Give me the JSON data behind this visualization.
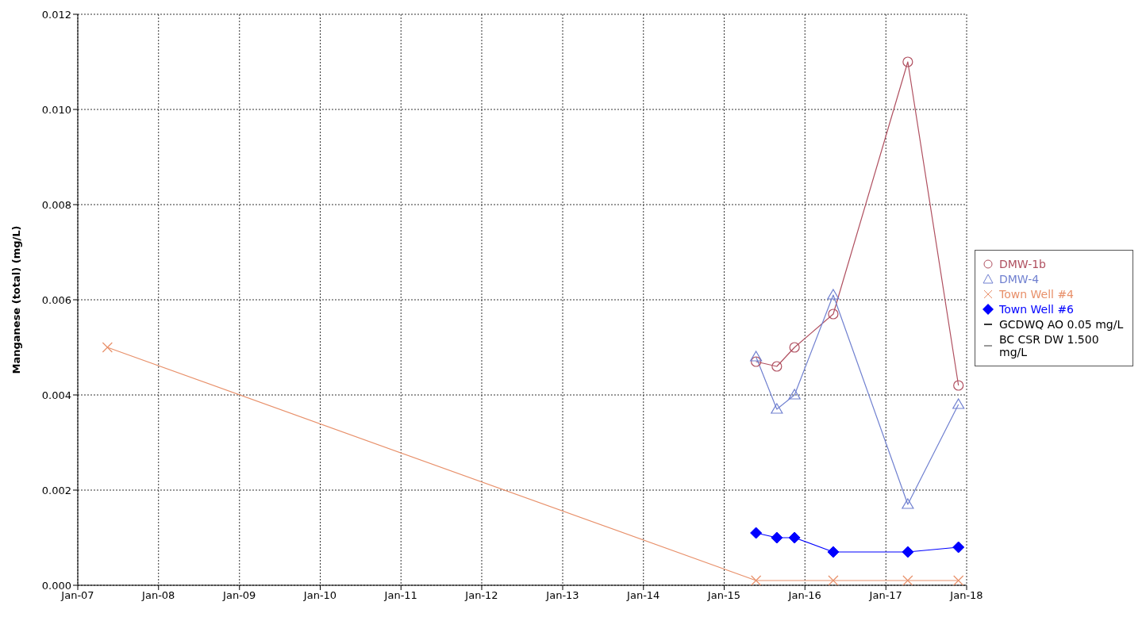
{
  "chart_data": {
    "type": "line",
    "ylabel": "Manganese (total) (mg/L)",
    "xlim": [
      "2007-01",
      "2018-01"
    ],
    "xticks": [
      {
        "value": "2007-01",
        "label": "Jan-07"
      },
      {
        "value": "2008-01",
        "label": "Jan-08"
      },
      {
        "value": "2009-01",
        "label": "Jan-09"
      },
      {
        "value": "2010-01",
        "label": "Jan-10"
      },
      {
        "value": "2011-01",
        "label": "Jan-11"
      },
      {
        "value": "2012-01",
        "label": "Jan-12"
      },
      {
        "value": "2013-01",
        "label": "Jan-13"
      },
      {
        "value": "2014-01",
        "label": "Jan-14"
      },
      {
        "value": "2015-01",
        "label": "Jan-15"
      },
      {
        "value": "2016-01",
        "label": "Jan-16"
      },
      {
        "value": "2017-01",
        "label": "Jan-17"
      },
      {
        "value": "2018-01",
        "label": "Jan-18"
      }
    ],
    "ylim": [
      0,
      0.012
    ],
    "yticks": [
      {
        "value": 0,
        "label": "0.000"
      },
      {
        "value": 0.002,
        "label": "0.002"
      },
      {
        "value": 0.004,
        "label": "0.004"
      },
      {
        "value": 0.006,
        "label": "0.006"
      },
      {
        "value": 0.008,
        "label": "0.008"
      },
      {
        "value": 0.01,
        "label": "0.010"
      },
      {
        "value": 0.012,
        "label": "0.012"
      }
    ],
    "grid": true,
    "legend": "right",
    "line_style": "solid",
    "series": [
      {
        "name": "DMW-1b",
        "color": "#b05060",
        "marker": "circle",
        "x": [
          "2015-05-25",
          "2015-08-27",
          "2015-11-15",
          "2016-05-08",
          "2017-04-10",
          "2017-11-25"
        ],
        "values": [
          0.0047,
          0.0046,
          0.005,
          0.0057,
          0.011,
          0.0042
        ]
      },
      {
        "name": "DMW-4",
        "color": "#7080d0",
        "marker": "triangle",
        "x": [
          "2015-05-25",
          "2015-08-27",
          "2015-11-15",
          "2016-05-08",
          "2017-04-10",
          "2017-11-25"
        ],
        "values": [
          0.0048,
          0.0037,
          0.004,
          0.0061,
          0.0017,
          0.0038
        ]
      },
      {
        "name": "Town Well #4",
        "color": "#e8906a",
        "marker": "cross",
        "x": [
          "2007-05-15",
          "2015-05-25",
          "2016-05-08",
          "2017-04-10",
          "2017-11-25"
        ],
        "values": [
          0.005,
          0.0001,
          0.0001,
          0.0001,
          0.0001
        ]
      },
      {
        "name": "Town Well #6",
        "color": "#0000ff",
        "marker": "diamond",
        "x": [
          "2015-05-25",
          "2015-08-27",
          "2015-11-15",
          "2016-05-08",
          "2017-04-10",
          "2017-11-25"
        ],
        "values": [
          0.0011,
          0.001,
          0.001,
          0.0007,
          0.0007,
          0.0008
        ]
      },
      {
        "name": "GCDWQ AO 0.05 mg/L",
        "color": "#333333",
        "marker": "none"
      },
      {
        "name": "BC CSR DW 1.500 mg/L",
        "color": "#999999",
        "marker": "none"
      }
    ]
  }
}
